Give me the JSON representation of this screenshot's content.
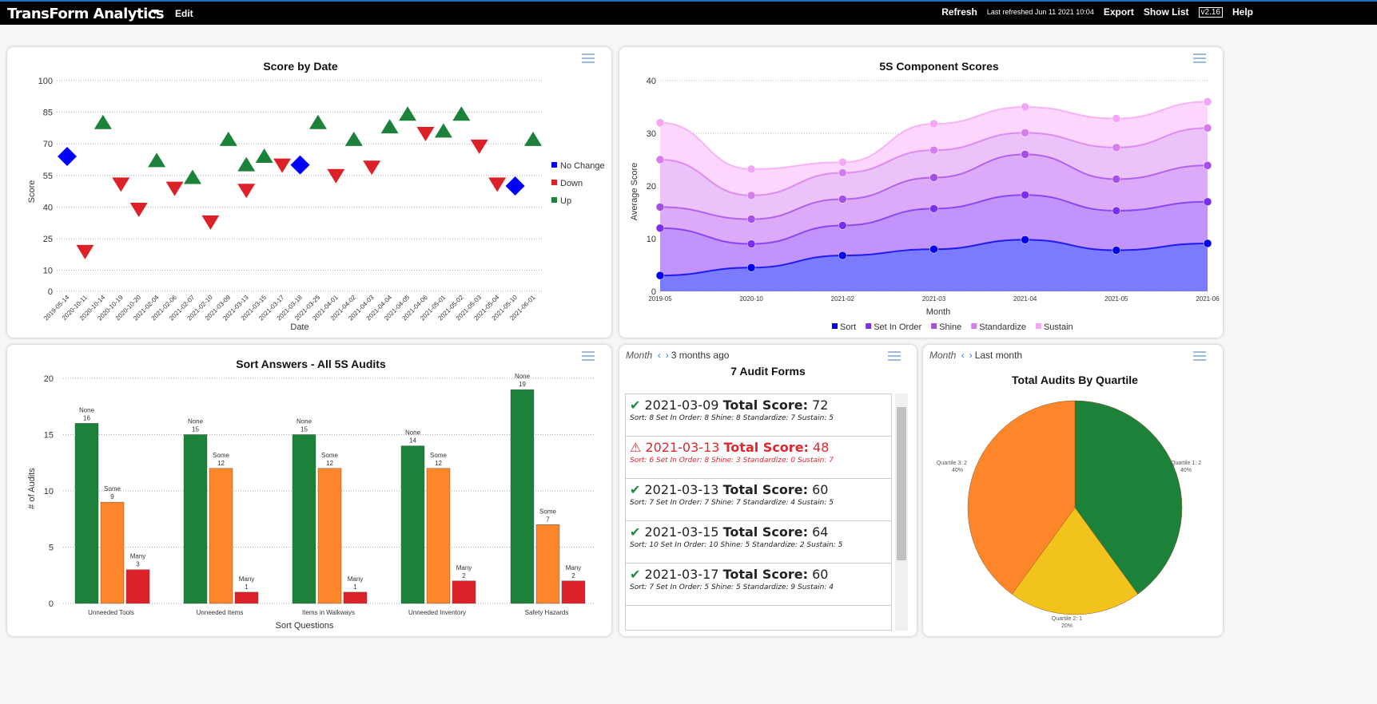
{
  "topbar": {
    "title": "TransForm Analytics",
    "edit": "Edit",
    "refresh": "Refresh",
    "last_refreshed": "Last refreshed Jun 11 2021 10:04",
    "export": "Export",
    "show_list": "Show List",
    "version": "v2.16",
    "help": "Help"
  },
  "colors": {
    "up": "#1c8139",
    "down": "#dc2128",
    "no_change": "#0000ff",
    "none": "#1c8139",
    "some": "#fd852a",
    "many": "#dc2128",
    "q1": "#1c8139",
    "q2": "#f1c31c",
    "q3": "#fd852a"
  },
  "chart_data": [
    {
      "type": "scatter",
      "title": "Score by Date",
      "xlabel": "Date",
      "ylabel": "Score",
      "ylim": [
        0,
        100
      ],
      "yticks": [
        0,
        10,
        25,
        40,
        55,
        70,
        85,
        100
      ],
      "grid": true,
      "legend_placement": "right",
      "categories": [
        "2019-05-14",
        "2020-10-11",
        "2020-10-14",
        "2020-10-19",
        "2020-10-20",
        "2021-02-04",
        "2021-02-06",
        "2021-02-07",
        "2021-02-10",
        "2021-03-09",
        "2021-03-13",
        "2021-03-15",
        "2021-03-17",
        "2021-03-18",
        "2021-03-25",
        "2021-04-01",
        "2021-04-02",
        "2021-04-03",
        "2021-04-04",
        "2021-04-05",
        "2021-04-06",
        "2021-05-01",
        "2021-05-02",
        "2021-05-03",
        "2021-05-04",
        "2021-05-10",
        "2021-06-01"
      ],
      "legend": [
        "No Change",
        "Down",
        "Up"
      ],
      "points": [
        {
          "x": "2019-05-14",
          "y": 64,
          "s": "No Change"
        },
        {
          "x": "2020-10-11",
          "y": 19,
          "s": "Down"
        },
        {
          "x": "2020-10-14",
          "y": 80,
          "s": "Up"
        },
        {
          "x": "2020-10-19",
          "y": 51,
          "s": "Down"
        },
        {
          "x": "2020-10-20",
          "y": 39,
          "s": "Down"
        },
        {
          "x": "2021-02-04",
          "y": 62,
          "s": "Up"
        },
        {
          "x": "2021-02-06",
          "y": 49,
          "s": "Down"
        },
        {
          "x": "2021-02-07",
          "y": 54,
          "s": "Up"
        },
        {
          "x": "2021-02-10",
          "y": 33,
          "s": "Down"
        },
        {
          "x": "2021-03-09",
          "y": 72,
          "s": "Up"
        },
        {
          "x": "2021-03-13",
          "y": 60,
          "s": "Up"
        },
        {
          "x": "2021-03-13",
          "y": 48,
          "s": "Down"
        },
        {
          "x": "2021-03-15",
          "y": 64,
          "s": "Up"
        },
        {
          "x": "2021-03-17",
          "y": 60,
          "s": "Down"
        },
        {
          "x": "2021-03-18",
          "y": 60,
          "s": "No Change"
        },
        {
          "x": "2021-03-25",
          "y": 80,
          "s": "Up"
        },
        {
          "x": "2021-04-01",
          "y": 55,
          "s": "Down"
        },
        {
          "x": "2021-04-02",
          "y": 72,
          "s": "Up"
        },
        {
          "x": "2021-04-03",
          "y": 59,
          "s": "Down"
        },
        {
          "x": "2021-04-04",
          "y": 78,
          "s": "Up"
        },
        {
          "x": "2021-04-05",
          "y": 84,
          "s": "Up"
        },
        {
          "x": "2021-04-06",
          "y": 75,
          "s": "Down"
        },
        {
          "x": "2021-05-01",
          "y": 76,
          "s": "Up"
        },
        {
          "x": "2021-05-02",
          "y": 84,
          "s": "Up"
        },
        {
          "x": "2021-05-03",
          "y": 69,
          "s": "Down"
        },
        {
          "x": "2021-05-04",
          "y": 51,
          "s": "Down"
        },
        {
          "x": "2021-05-10",
          "y": 50,
          "s": "No Change"
        },
        {
          "x": "2021-06-01",
          "y": 72,
          "s": "Up"
        }
      ]
    },
    {
      "type": "area",
      "stacked": true,
      "title": "5S Component Scores",
      "xlabel": "Month",
      "ylabel": "Average Score",
      "ylim": [
        0,
        40
      ],
      "yticks": [
        0,
        10,
        20,
        30,
        40
      ],
      "grid": true,
      "legend_placement": "bottom",
      "categories": [
        "2019-05",
        "2020-10",
        "2021-02",
        "2021-03",
        "2021-04",
        "2021-05",
        "2021-06"
      ],
      "series": [
        {
          "name": "Sort",
          "color": "#0000ee",
          "fill": "#7b7bff",
          "values": [
            3,
            4.5,
            6.8,
            8,
            9.8,
            7.8,
            9.1
          ]
        },
        {
          "name": "Set In Order",
          "color": "#7a2ff0",
          "fill": "#c194fb",
          "values": [
            9,
            4.5,
            5.7,
            7.7,
            8.5,
            7.5,
            7.9
          ]
        },
        {
          "name": "Shine",
          "color": "#a64ee8",
          "fill": "#dcaaf8",
          "values": [
            4,
            4.7,
            5,
            5.9,
            7.7,
            6,
            6.9
          ]
        },
        {
          "name": "Standardize",
          "color": "#d57ded",
          "fill": "#ecc2fb",
          "values": [
            9,
            4.5,
            5,
            5.2,
            4.1,
            6,
            7.1
          ]
        },
        {
          "name": "Sustain",
          "color": "#f4a6f4",
          "fill": "#fcd6fc",
          "values": [
            7,
            5,
            2,
            5,
            4.9,
            5.5,
            5
          ]
        }
      ]
    },
    {
      "type": "bar",
      "title": "Sort Answers - All 5S Audits",
      "xlabel": "Sort Questions",
      "ylabel": "# of Audits",
      "ylim": [
        0,
        20
      ],
      "yticks": [
        0,
        5,
        10,
        15,
        20
      ],
      "grid": true,
      "categories": [
        "Unneeded Tools",
        "Unneeded Items",
        "Items in Walkways",
        "Unneeded Inventory",
        "Safety Hazards"
      ],
      "series": [
        {
          "name": "None",
          "values": [
            16,
            15,
            15,
            14,
            19
          ]
        },
        {
          "name": "Some",
          "values": [
            9,
            12,
            12,
            12,
            7
          ]
        },
        {
          "name": "Many",
          "values": [
            3,
            1,
            1,
            2,
            2
          ]
        }
      ]
    },
    {
      "type": "pie",
      "title": "Total Audits By Quartile",
      "slices": [
        {
          "label": "Quartile 1: 2",
          "value": 2,
          "pct": "40%"
        },
        {
          "label": "Quartile 2: 1",
          "value": 1,
          "pct": "20%"
        },
        {
          "label": "Quartile 3: 2",
          "value": 2,
          "pct": "40%"
        }
      ]
    }
  ],
  "audits": {
    "period_label": "Month",
    "period": "3 months ago",
    "title": "7 Audit Forms",
    "score_label": "Total Score:",
    "items": [
      {
        "date": "2021-03-09",
        "score": "72",
        "detail": "Sort: 8 Set In Order: 8 Shine: 8 Standardize: 7 Sustain: 5",
        "status": "ok"
      },
      {
        "date": "2021-03-13",
        "score": "48",
        "detail": "Sort: 6 Set In Order: 8 Shine: 3 Standardize: 0 Sustain: 7",
        "status": "warning"
      },
      {
        "date": "2021-03-13",
        "score": "60",
        "detail": "Sort: 7 Set In Order: 7 Shine: 7 Standardize: 4 Sustain: 5",
        "status": "ok"
      },
      {
        "date": "2021-03-15",
        "score": "64",
        "detail": "Sort: 10 Set In Order: 10 Shine: 5 Standardize: 2 Sustain: 5",
        "status": "ok"
      },
      {
        "date": "2021-03-17",
        "score": "60",
        "detail": "Sort: 7 Set In Order: 5 Shine: 5 Standardize: 9 Sustain: 4",
        "status": "ok"
      }
    ]
  },
  "quartile": {
    "period_label": "Month",
    "period": "Last month"
  }
}
